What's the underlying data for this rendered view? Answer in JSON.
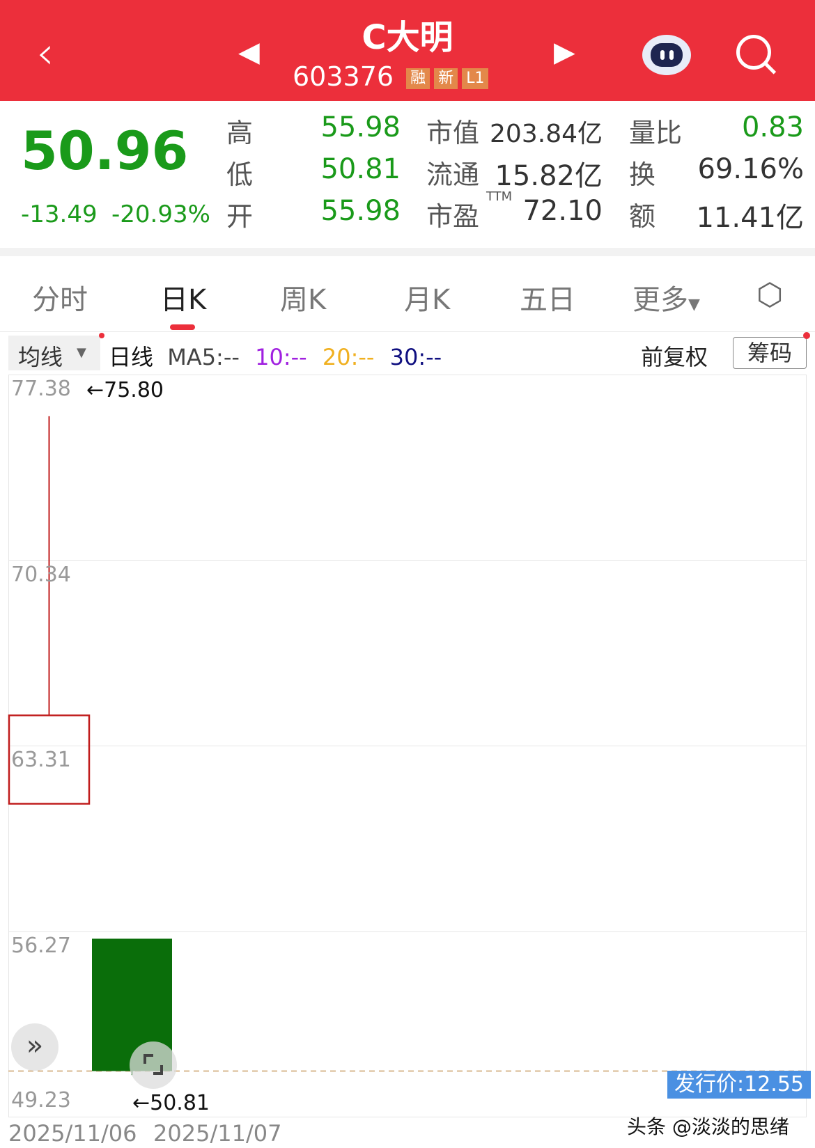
{
  "header": {
    "title": "C大明",
    "code": "603376",
    "tags": [
      "融",
      "新",
      "L1"
    ],
    "color": "#ec2f3b"
  },
  "quote": {
    "price": "50.96",
    "change": "-13.49",
    "change_pct": "-20.93%",
    "rows": [
      {
        "l1": "高",
        "v1": "55.98",
        "l2": "市值",
        "v2": "203.84亿",
        "l3": "量比",
        "v3": "0.83"
      },
      {
        "l1": "低",
        "v1": "50.81",
        "l2": "流通",
        "v2": "15.82亿",
        "l3": "换",
        "v3": "69.16%"
      },
      {
        "l1": "开",
        "v1": "55.98",
        "l2": "市盈",
        "sup": "TTM",
        "v2": "72.10",
        "l3": "额",
        "v3": "11.41亿"
      }
    ]
  },
  "tabs": [
    "分时",
    "日K",
    "周K",
    "月K",
    "五日",
    "更多"
  ],
  "active_tab": "日K",
  "ma_bar": {
    "dropdown": "均线",
    "type": "日线",
    "ma5": "MA5:--",
    "ma10": "10:--",
    "ma20": "20:--",
    "ma30": "30:--",
    "adjust": "前复权",
    "chips": "筹码",
    "colors": {
      "ma10": "#a020e0",
      "ma20": "#f0b020",
      "ma30": "#101080"
    }
  },
  "chart_data": {
    "type": "candlestick",
    "ylim": [
      49.23,
      77.38
    ],
    "yticks": [
      "77.38",
      "70.34",
      "63.31",
      "56.27",
      "49.23"
    ],
    "dates": [
      "2025/11/06",
      "2025/11/07"
    ],
    "candles": [
      {
        "date": "2025/11/06",
        "open": 61.1,
        "close": 64.45,
        "high": 75.8,
        "low": 61.1,
        "color": "#c01c1c"
      },
      {
        "date": "2025/11/07",
        "open": 55.98,
        "close": 50.96,
        "high": 55.98,
        "low": 50.81,
        "color": "#0a6e0a"
      }
    ],
    "high_label": "←75.80",
    "low_label": "←50.81",
    "issue_price": "发行价:12.55",
    "price_line": 50.96
  },
  "watermark": "头条 @淡淡的思绪"
}
